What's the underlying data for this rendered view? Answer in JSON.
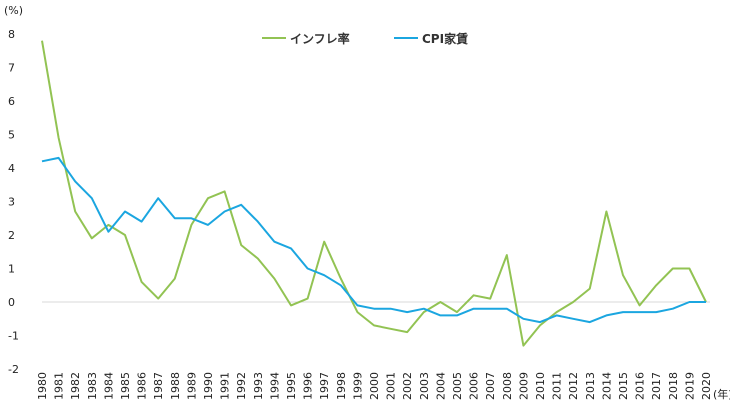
{
  "chart_data": {
    "type": "line",
    "title": "",
    "xlabel": "(年)",
    "ylabel": "(%)",
    "ylim": [
      -2,
      8
    ],
    "yticks": [
      8,
      7,
      6,
      5,
      4,
      3,
      2,
      1,
      0,
      -1,
      -2
    ],
    "grid": false,
    "legend_position": "top-center",
    "x": [
      "1980",
      "1981",
      "1982",
      "1983",
      "1984",
      "1985",
      "1986",
      "1987",
      "1988",
      "1989",
      "1990",
      "1991",
      "1992",
      "1993",
      "1994",
      "1995",
      "1996",
      "1997",
      "1998",
      "1999",
      "2000",
      "2001",
      "2002",
      "2003",
      "2004",
      "2005",
      "2006",
      "2007",
      "2008",
      "2009",
      "2010",
      "2011",
      "2012",
      "2013",
      "2014",
      "2015",
      "2016",
      "2017",
      "2018",
      "2019",
      "2020"
    ],
    "series": [
      {
        "name": "インフレ率",
        "color": "#92c353",
        "values": [
          7.8,
          4.9,
          2.7,
          1.9,
          2.3,
          2.0,
          0.6,
          0.1,
          0.7,
          2.3,
          3.1,
          3.3,
          1.7,
          1.3,
          0.7,
          -0.1,
          0.1,
          1.8,
          0.7,
          -0.3,
          -0.7,
          -0.8,
          -0.9,
          -0.3,
          0.0,
          -0.3,
          0.2,
          0.1,
          1.4,
          -1.3,
          -0.7,
          -0.3,
          0.0,
          0.4,
          2.7,
          0.8,
          -0.1,
          0.5,
          1.0,
          1.0,
          0.0
        ]
      },
      {
        "name": "CPI家賃",
        "color": "#1ba6e0",
        "values": [
          4.2,
          4.3,
          3.6,
          3.1,
          2.1,
          2.7,
          2.4,
          3.1,
          2.5,
          2.5,
          2.3,
          2.7,
          2.9,
          2.4,
          1.8,
          1.6,
          1.0,
          0.8,
          0.5,
          -0.1,
          -0.2,
          -0.2,
          -0.3,
          -0.2,
          -0.4,
          -0.4,
          -0.2,
          -0.2,
          -0.2,
          -0.5,
          -0.6,
          -0.4,
          -0.5,
          -0.6,
          -0.4,
          -0.3,
          -0.3,
          -0.3,
          -0.2,
          0.0,
          0.0
        ]
      }
    ]
  }
}
